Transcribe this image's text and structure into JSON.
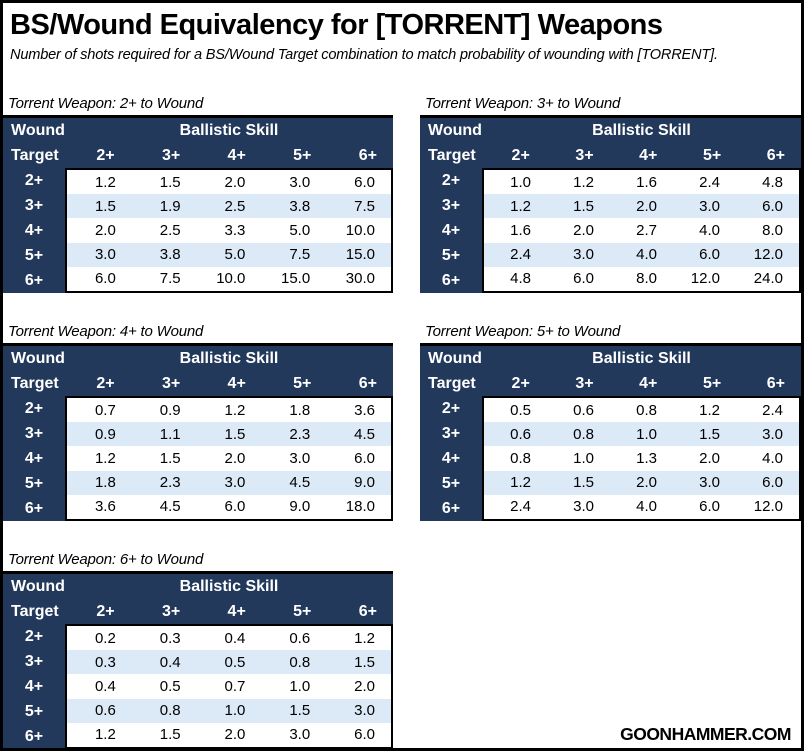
{
  "header": {
    "title": "BS/Wound Equivalency for [TORRENT] Weapons",
    "subtitle": "Number of shots required for a BS/Wound Target combination to match probability of wounding with [TORRENT]."
  },
  "footer": {
    "watermark": "GOONHAMMER.COM"
  },
  "colors": {
    "navy": "#22395B",
    "stripe": "#DCE9F6",
    "border": "#000000"
  },
  "table_common": {
    "corner_line1": "Wound",
    "corner_line2": "Target",
    "group_header": "Ballistic Skill",
    "bs_columns": [
      "2+",
      "3+",
      "4+",
      "5+",
      "6+"
    ],
    "wound_rows": [
      "2+",
      "3+",
      "4+",
      "5+",
      "6+"
    ]
  },
  "chart_data": [
    {
      "type": "table",
      "title": "Torrent Weapon: 2+ to Wound",
      "columns": [
        "2+",
        "3+",
        "4+",
        "5+",
        "6+"
      ],
      "row_labels": [
        "2+",
        "3+",
        "4+",
        "5+",
        "6+"
      ],
      "values": [
        [
          "1.2",
          "1.5",
          "2.0",
          "3.0",
          "6.0"
        ],
        [
          "1.5",
          "1.9",
          "2.5",
          "3.8",
          "7.5"
        ],
        [
          "2.0",
          "2.5",
          "3.3",
          "5.0",
          "10.0"
        ],
        [
          "3.0",
          "3.8",
          "5.0",
          "7.5",
          "15.0"
        ],
        [
          "6.0",
          "7.5",
          "10.0",
          "15.0",
          "30.0"
        ]
      ]
    },
    {
      "type": "table",
      "title": "Torrent Weapon: 3+ to Wound",
      "columns": [
        "2+",
        "3+",
        "4+",
        "5+",
        "6+"
      ],
      "row_labels": [
        "2+",
        "3+",
        "4+",
        "5+",
        "6+"
      ],
      "values": [
        [
          "1.0",
          "1.2",
          "1.6",
          "2.4",
          "4.8"
        ],
        [
          "1.2",
          "1.5",
          "2.0",
          "3.0",
          "6.0"
        ],
        [
          "1.6",
          "2.0",
          "2.7",
          "4.0",
          "8.0"
        ],
        [
          "2.4",
          "3.0",
          "4.0",
          "6.0",
          "12.0"
        ],
        [
          "4.8",
          "6.0",
          "8.0",
          "12.0",
          "24.0"
        ]
      ]
    },
    {
      "type": "table",
      "title": "Torrent Weapon: 4+ to Wound",
      "columns": [
        "2+",
        "3+",
        "4+",
        "5+",
        "6+"
      ],
      "row_labels": [
        "2+",
        "3+",
        "4+",
        "5+",
        "6+"
      ],
      "values": [
        [
          "0.7",
          "0.9",
          "1.2",
          "1.8",
          "3.6"
        ],
        [
          "0.9",
          "1.1",
          "1.5",
          "2.3",
          "4.5"
        ],
        [
          "1.2",
          "1.5",
          "2.0",
          "3.0",
          "6.0"
        ],
        [
          "1.8",
          "2.3",
          "3.0",
          "4.5",
          "9.0"
        ],
        [
          "3.6",
          "4.5",
          "6.0",
          "9.0",
          "18.0"
        ]
      ]
    },
    {
      "type": "table",
      "title": "Torrent Weapon: 5+ to Wound",
      "columns": [
        "2+",
        "3+",
        "4+",
        "5+",
        "6+"
      ],
      "row_labels": [
        "2+",
        "3+",
        "4+",
        "5+",
        "6+"
      ],
      "values": [
        [
          "0.5",
          "0.6",
          "0.8",
          "1.2",
          "2.4"
        ],
        [
          "0.6",
          "0.8",
          "1.0",
          "1.5",
          "3.0"
        ],
        [
          "0.8",
          "1.0",
          "1.3",
          "2.0",
          "4.0"
        ],
        [
          "1.2",
          "1.5",
          "2.0",
          "3.0",
          "6.0"
        ],
        [
          "2.4",
          "3.0",
          "4.0",
          "6.0",
          "12.0"
        ]
      ]
    },
    {
      "type": "table",
      "title": "Torrent Weapon: 6+ to Wound",
      "columns": [
        "2+",
        "3+",
        "4+",
        "5+",
        "6+"
      ],
      "row_labels": [
        "2+",
        "3+",
        "4+",
        "5+",
        "6+"
      ],
      "values": [
        [
          "0.2",
          "0.3",
          "0.4",
          "0.6",
          "1.2"
        ],
        [
          "0.3",
          "0.4",
          "0.5",
          "0.8",
          "1.5"
        ],
        [
          "0.4",
          "0.5",
          "0.7",
          "1.0",
          "2.0"
        ],
        [
          "0.6",
          "0.8",
          "1.0",
          "1.5",
          "3.0"
        ],
        [
          "1.2",
          "1.5",
          "2.0",
          "3.0",
          "6.0"
        ]
      ]
    }
  ]
}
